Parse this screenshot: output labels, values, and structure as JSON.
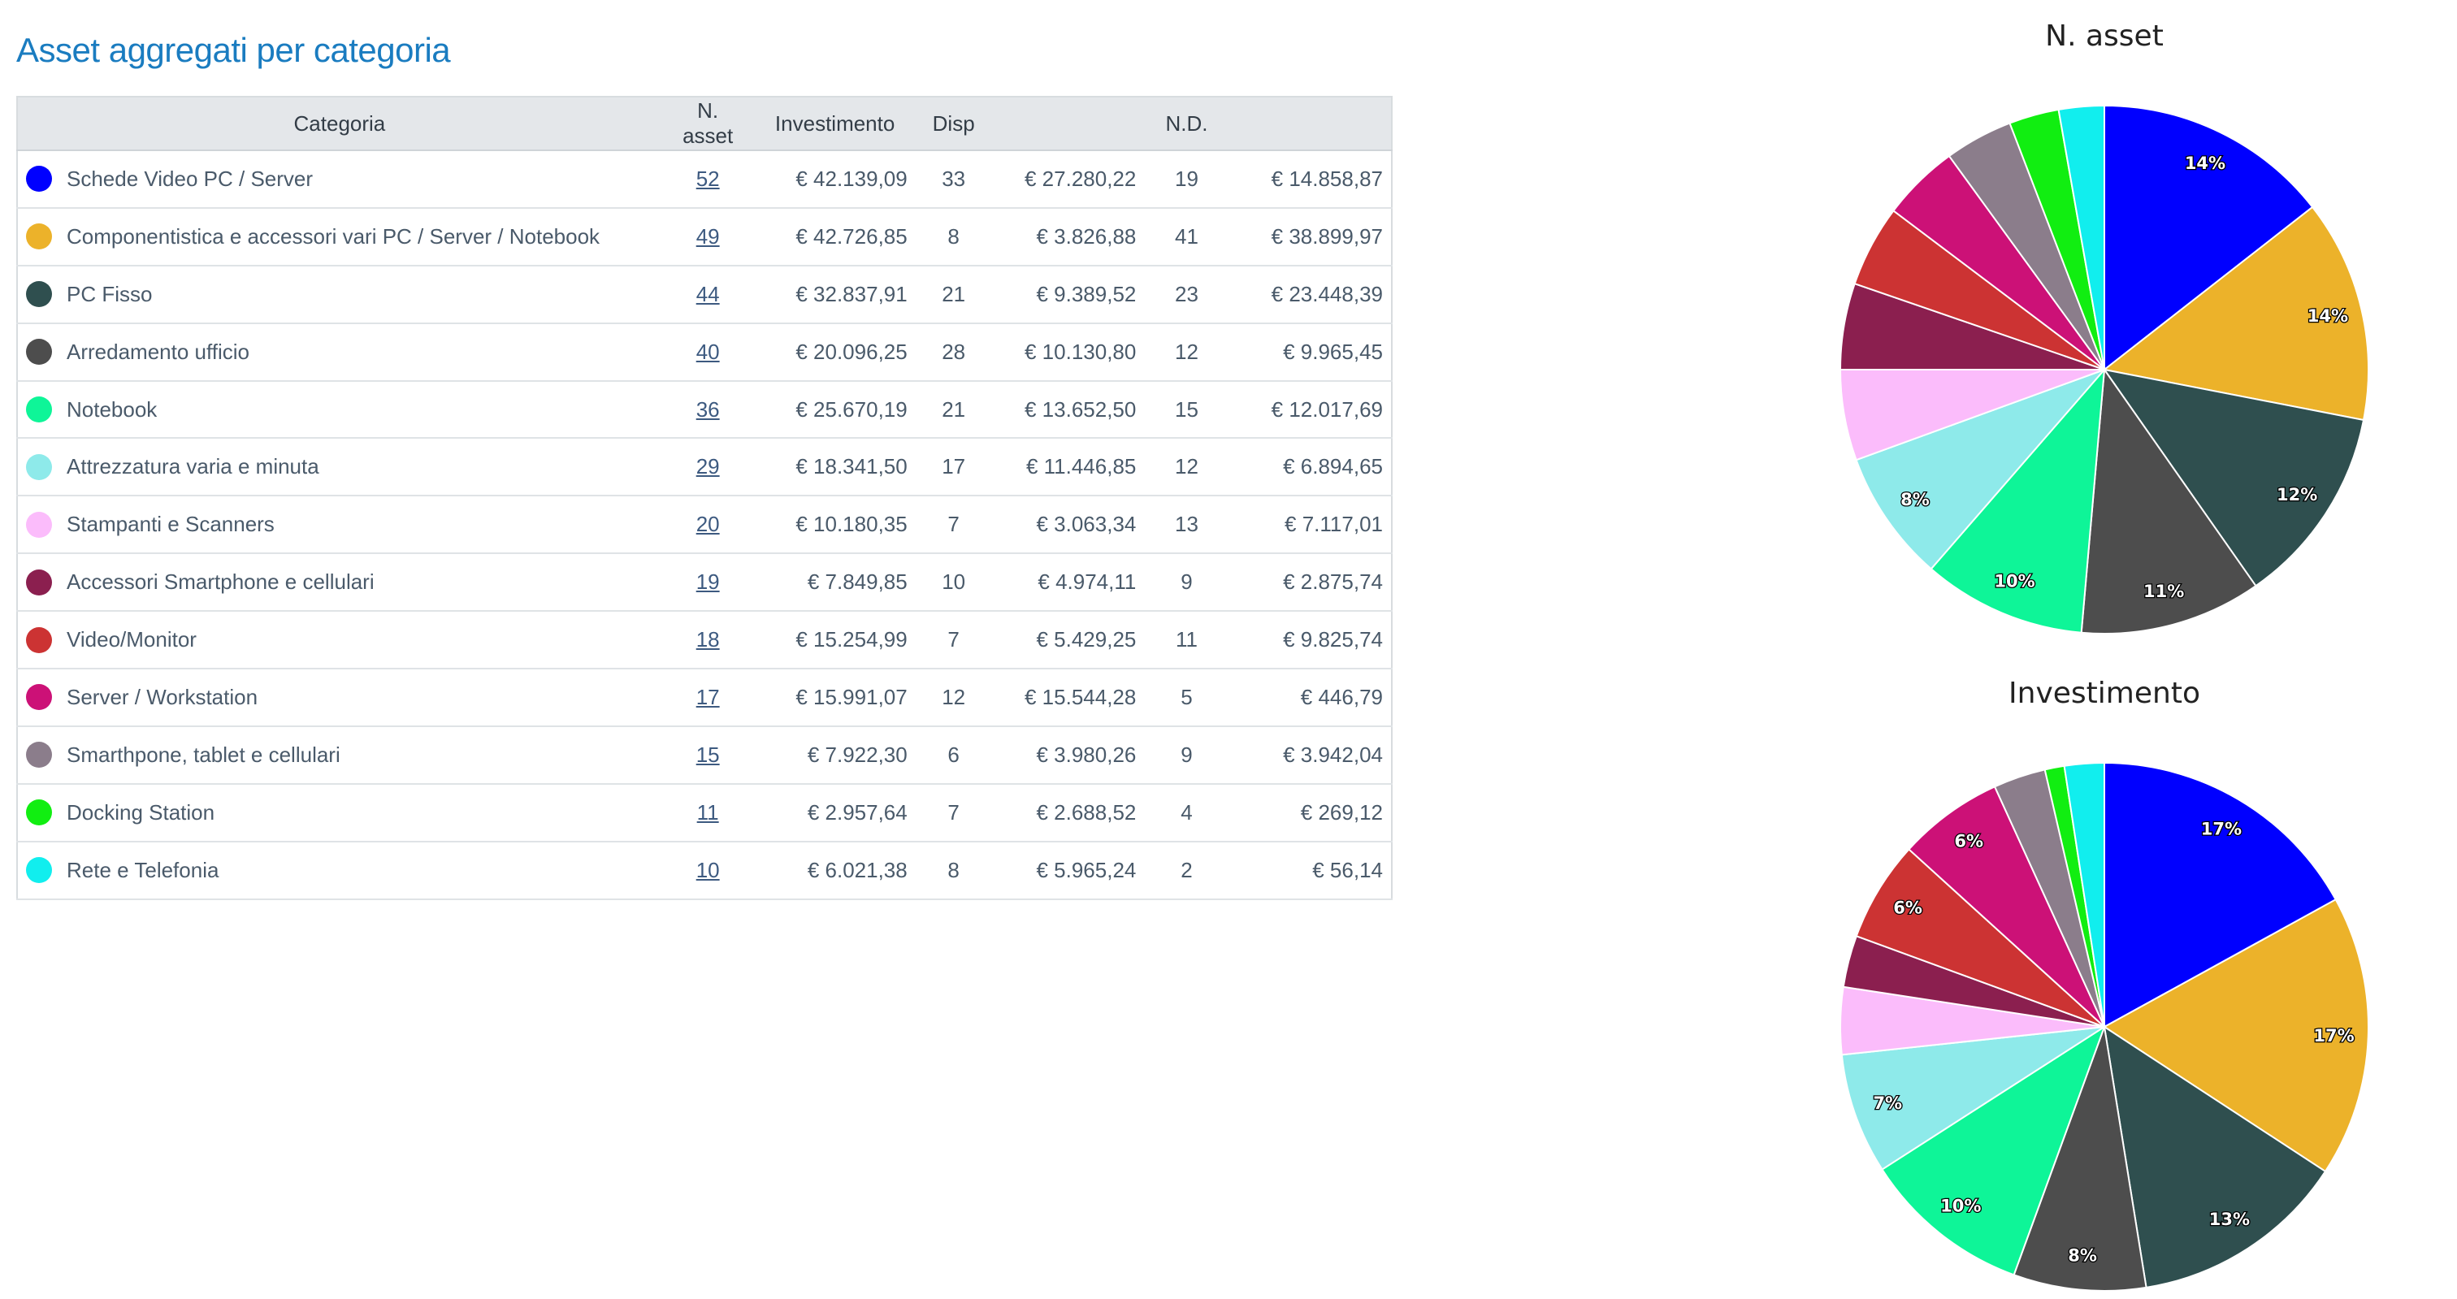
{
  "page": {
    "title": "Asset aggregati per categoria"
  },
  "table": {
    "columns": {
      "categoria": "Categoria",
      "n_asset": "N. asset",
      "investimento": "Investimento",
      "disp": "Disp",
      "nd": "N.D."
    },
    "rows": [
      {
        "color": "#0000ff",
        "categoria": "Schede Video PC / Server",
        "n_asset": "52",
        "investimento": "€ 42.139,09",
        "disp_count": "33",
        "disp_value": "€ 27.280,22",
        "nd_count": "19",
        "nd_value": "€ 14.858,87"
      },
      {
        "color": "#ecb22a",
        "categoria": "Componentistica e accessori vari PC / Server / Notebook",
        "n_asset": "49",
        "investimento": "€ 42.726,85",
        "disp_count": "8",
        "disp_value": "€ 3.826,88",
        "nd_count": "41",
        "nd_value": "€ 38.899,97"
      },
      {
        "color": "#2f4f4f",
        "categoria": "PC Fisso",
        "n_asset": "44",
        "investimento": "€ 32.837,91",
        "disp_count": "21",
        "disp_value": "€ 9.389,52",
        "nd_count": "23",
        "nd_value": "€ 23.448,39"
      },
      {
        "color": "#4d4d4d",
        "categoria": "Arredamento ufficio",
        "n_asset": "40",
        "investimento": "€ 20.096,25",
        "disp_count": "28",
        "disp_value": "€ 10.130,80",
        "nd_count": "12",
        "nd_value": "€ 9.965,45"
      },
      {
        "color": "#0ef598",
        "categoria": "Notebook",
        "n_asset": "36",
        "investimento": "€ 25.670,19",
        "disp_count": "21",
        "disp_value": "€ 13.652,50",
        "nd_count": "15",
        "nd_value": "€ 12.017,69"
      },
      {
        "color": "#8eeaea",
        "categoria": "Attrezzatura varia e minuta",
        "n_asset": "29",
        "investimento": "€ 18.341,50",
        "disp_count": "17",
        "disp_value": "€ 11.446,85",
        "nd_count": "12",
        "nd_value": "€ 6.894,65"
      },
      {
        "color": "#fbbcfb",
        "categoria": "Stampanti e Scanners",
        "n_asset": "20",
        "investimento": "€ 10.180,35",
        "disp_count": "7",
        "disp_value": "€ 3.063,34",
        "nd_count": "13",
        "nd_value": "€ 7.117,01"
      },
      {
        "color": "#8b1f4f",
        "categoria": "Accessori Smartphone e cellulari",
        "n_asset": "19",
        "investimento": "€ 7.849,85",
        "disp_count": "10",
        "disp_value": "€ 4.974,11",
        "nd_count": "9",
        "nd_value": "€ 2.875,74"
      },
      {
        "color": "#cc3333",
        "categoria": "Video/Monitor",
        "n_asset": "18",
        "investimento": "€ 15.254,99",
        "disp_count": "7",
        "disp_value": "€ 5.429,25",
        "nd_count": "11",
        "nd_value": "€ 9.825,74"
      },
      {
        "color": "#cc1177",
        "categoria": "Server / Workstation",
        "n_asset": "17",
        "investimento": "€ 15.991,07",
        "disp_count": "12",
        "disp_value": "€ 15.544,28",
        "nd_count": "5",
        "nd_value": "€ 446,79"
      },
      {
        "color": "#8b7d8b",
        "categoria": "Smarthpone, tablet e cellulari",
        "n_asset": "15",
        "investimento": "€ 7.922,30",
        "disp_count": "6",
        "disp_value": "€ 3.980,26",
        "nd_count": "9",
        "nd_value": "€ 3.942,04"
      },
      {
        "color": "#11ee11",
        "categoria": "Docking Station",
        "n_asset": "11",
        "investimento": "€ 2.957,64",
        "disp_count": "7",
        "disp_value": "€ 2.688,52",
        "nd_count": "4",
        "nd_value": "€ 269,12"
      },
      {
        "color": "#11eeee",
        "categoria": "Rete e Telefonia",
        "n_asset": "10",
        "investimento": "€ 6.021,38",
        "disp_count": "8",
        "disp_value": "€ 5.965,24",
        "nd_count": "2",
        "nd_value": "€ 56,14"
      }
    ]
  },
  "chart_data": [
    {
      "type": "pie",
      "title": "N. asset",
      "categories": [
        "Schede Video PC / Server",
        "Componentistica e accessori vari PC / Server / Notebook",
        "PC Fisso",
        "Arredamento ufficio",
        "Notebook",
        "Attrezzatura varia e minuta",
        "Stampanti e Scanners",
        "Accessori Smartphone e cellulari",
        "Video/Monitor",
        "Server / Workstation",
        "Smarthpone, tablet e cellulari",
        "Docking Station",
        "Rete e Telefonia"
      ],
      "values": [
        52,
        49,
        44,
        40,
        36,
        29,
        20,
        19,
        18,
        17,
        15,
        11,
        10
      ],
      "colors": [
        "#0000ff",
        "#ecb22a",
        "#2f4f4f",
        "#4d4d4d",
        "#0ef598",
        "#8eeaea",
        "#fbbcfb",
        "#8b1f4f",
        "#cc3333",
        "#cc1177",
        "#8b7d8b",
        "#11ee11",
        "#11eeee"
      ],
      "slice_labels": [
        "14%",
        "14%",
        "12%",
        "11%",
        "10%",
        "8%",
        "",
        "",
        "",
        "",
        "",
        "",
        ""
      ]
    },
    {
      "type": "pie",
      "title": "Investimento",
      "categories": [
        "Schede Video PC / Server",
        "Componentistica e accessori vari PC / Server / Notebook",
        "PC Fisso",
        "Arredamento ufficio",
        "Notebook",
        "Attrezzatura varia e minuta",
        "Stampanti e Scanners",
        "Accessori Smartphone e cellulari",
        "Video/Monitor",
        "Server / Workstation",
        "Smarthpone, tablet e cellulari",
        "Docking Station",
        "Rete e Telefonia"
      ],
      "values": [
        42139.09,
        42726.85,
        32837.91,
        20096.25,
        25670.19,
        18341.5,
        10180.35,
        7849.85,
        15254.99,
        15991.07,
        7922.3,
        2957.64,
        6021.38
      ],
      "colors": [
        "#0000ff",
        "#ecb22a",
        "#2f4f4f",
        "#4d4d4d",
        "#0ef598",
        "#8eeaea",
        "#fbbcfb",
        "#8b1f4f",
        "#cc3333",
        "#cc1177",
        "#8b7d8b",
        "#11ee11",
        "#11eeee"
      ],
      "slice_labels": [
        "17%",
        "17%",
        "13%",
        "8%",
        "10%",
        "7%",
        "",
        "",
        "6%",
        "6%",
        "",
        "",
        ""
      ]
    }
  ]
}
